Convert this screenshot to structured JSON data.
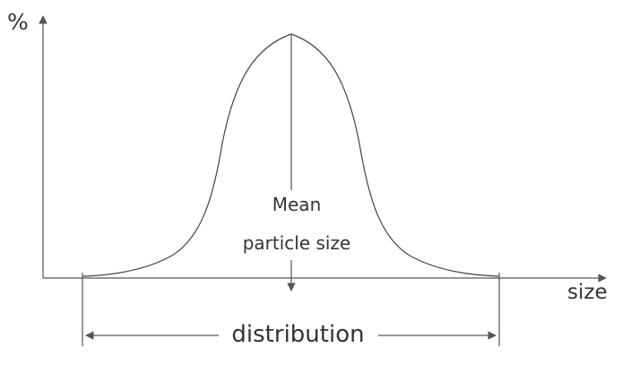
{
  "axes": {
    "y_label": "%",
    "x_label": "size"
  },
  "annotation": {
    "mean_line_1": "Mean",
    "mean_line_2": "particle size"
  },
  "range": {
    "label": "distribution"
  },
  "colors": {
    "line": "#555555",
    "text": "#333333",
    "background": "#ffffff"
  }
}
